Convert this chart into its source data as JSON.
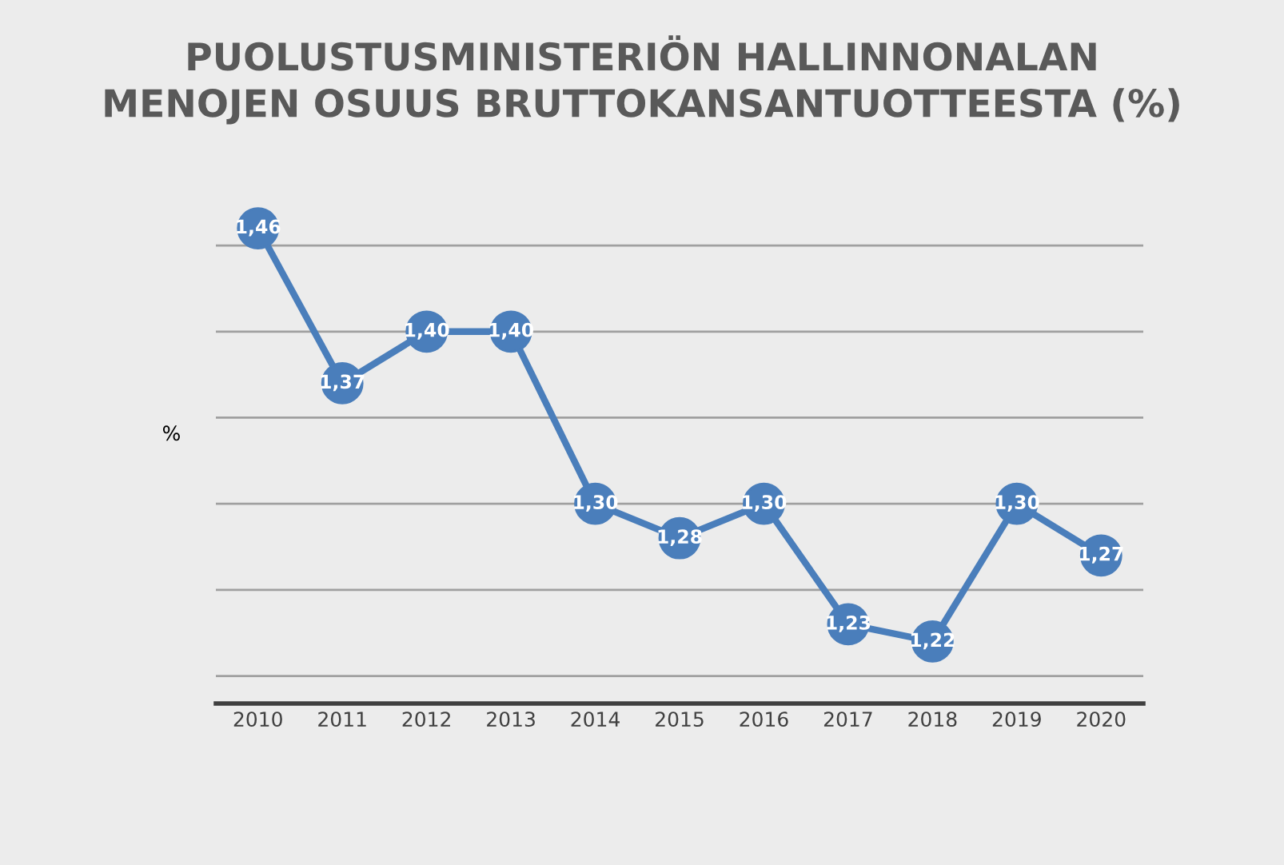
{
  "chart_data": {
    "type": "line",
    "title": "PUOLUSTUSMINISTERIÖN HALLINNONALAN\nMENOJEN OSUUS BRUTTOKANSANTUOTTEESTA (%)",
    "ylabel": "%",
    "categories": [
      "2010",
      "2011",
      "2012",
      "2013",
      "2014",
      "2015",
      "2016",
      "2017",
      "2018",
      "2019",
      "2020"
    ],
    "series": [
      {
        "color": "#4a7ebb",
        "values": [
          1.46,
          1.37,
          1.4,
          1.4,
          1.3,
          1.28,
          1.3,
          1.23,
          1.22,
          1.3,
          1.27
        ],
        "value_labels": [
          "1,46",
          "1,37",
          "1,40",
          "1,40",
          "1,30",
          "1,28",
          "1,30",
          "1,23",
          "1,22",
          "1,30",
          "1,27"
        ]
      }
    ],
    "grid": "y",
    "marker": "circle",
    "line_style": "solid",
    "legend": false,
    "tick_labels": "x"
  }
}
